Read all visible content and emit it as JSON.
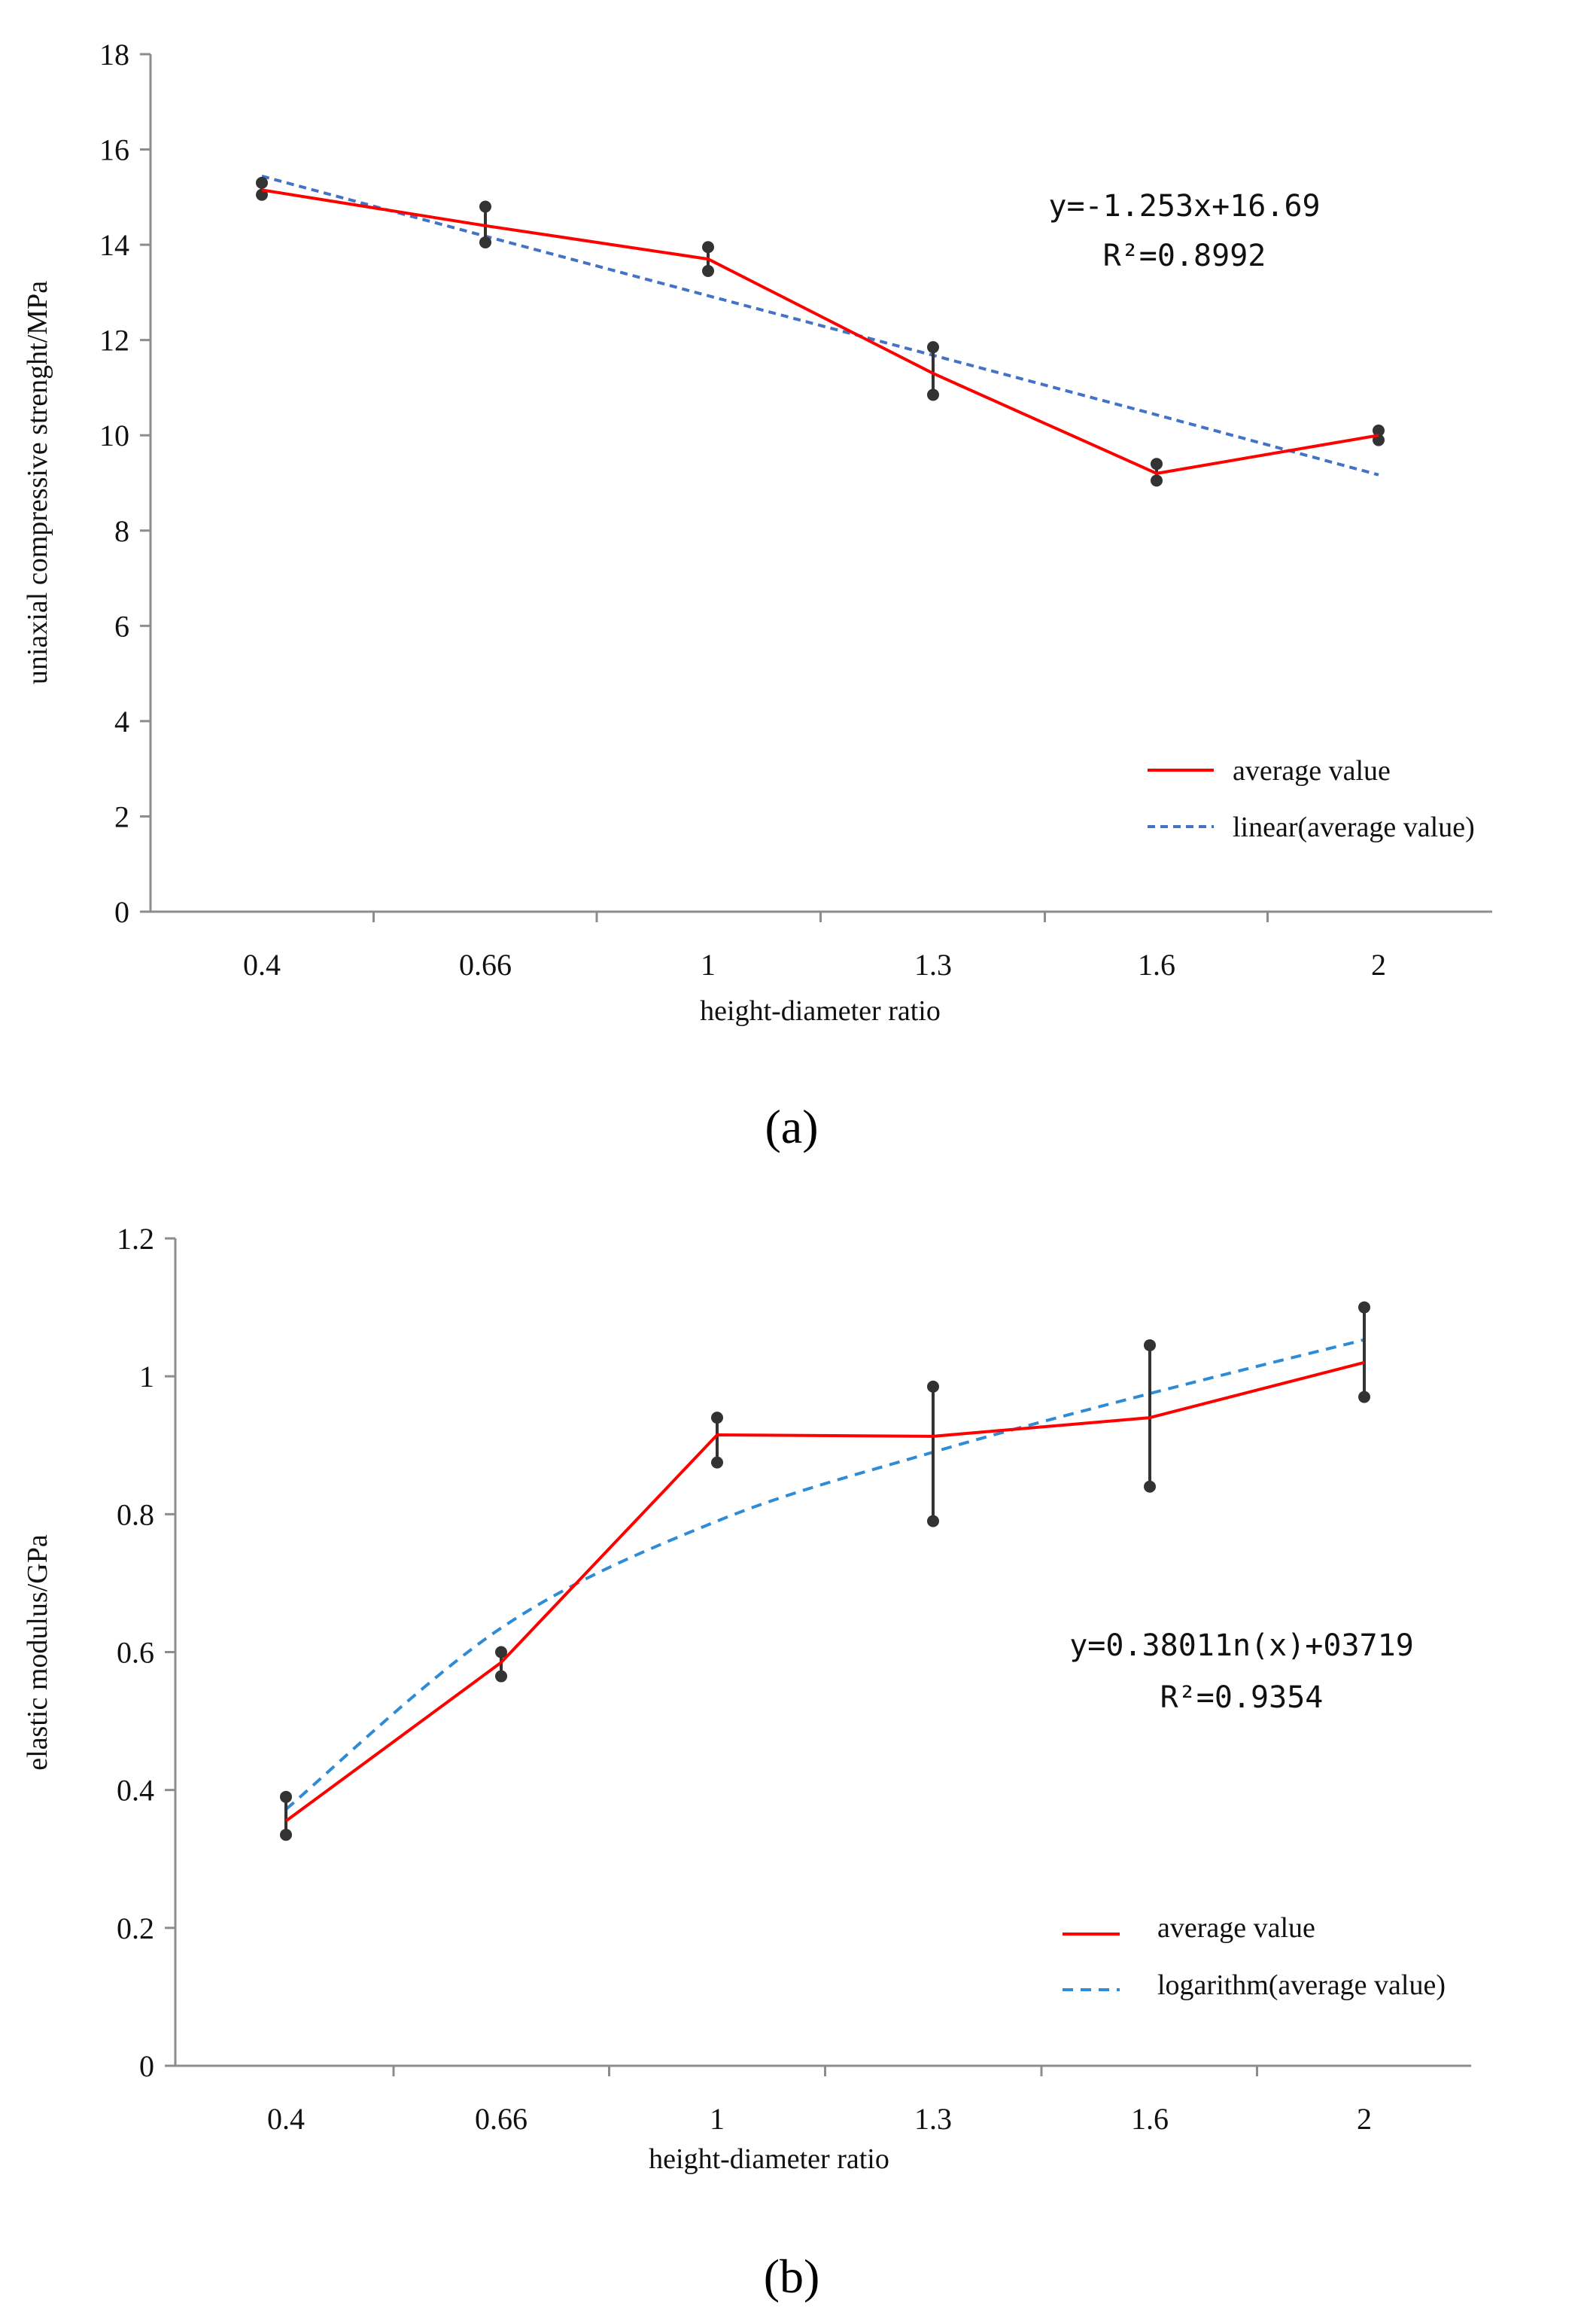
{
  "chart_data": [
    {
      "type": "line",
      "panel_label": "(a)",
      "categories": [
        "0.4",
        "0.66",
        "1",
        "1.3",
        "1.6",
        "2"
      ],
      "xlabel": "height-diameter ratio",
      "ylabel": "uniaxial compressive strenght/MPa",
      "ylim": [
        0,
        18
      ],
      "yticks": [
        "0",
        "2",
        "4",
        "6",
        "8",
        "10",
        "12",
        "14",
        "16",
        "18"
      ],
      "series": [
        {
          "name": "average value",
          "color": "#ff0000",
          "style": "solid",
          "values": [
            15.15,
            14.4,
            13.7,
            11.3,
            9.2,
            10.0
          ],
          "error_low": [
            15.05,
            14.05,
            13.45,
            10.85,
            9.05,
            9.9
          ],
          "error_high": [
            15.3,
            14.8,
            13.95,
            11.85,
            9.4,
            10.1
          ]
        },
        {
          "name": "linear(average value)",
          "color": "#4472c4",
          "style": "dashed",
          "values": [
            15.44,
            14.18,
            12.93,
            11.68,
            10.43,
            9.17
          ]
        }
      ],
      "equation": "y=-1.253x+16.69",
      "r2": "R²=0.8992",
      "legend_position": "bottom-right"
    },
    {
      "type": "line",
      "panel_label": "(b)",
      "categories": [
        "0.4",
        "0.66",
        "1",
        "1.3",
        "1.6",
        "2"
      ],
      "xlabel": "height-diameter ratio",
      "ylabel": "elastic modulus/GPa",
      "ylim": [
        0,
        1.2
      ],
      "yticks": [
        "0",
        "0.2",
        "0.4",
        "0.6",
        "0.8",
        "1",
        "1.2"
      ],
      "series": [
        {
          "name": "average value",
          "color": "#ff0000",
          "style": "solid",
          "values": [
            0.355,
            0.585,
            0.915,
            0.913,
            0.94,
            1.02
          ],
          "error_low": [
            0.335,
            0.565,
            0.875,
            0.79,
            0.84,
            0.97
          ],
          "error_high": [
            0.39,
            0.6,
            0.94,
            0.985,
            1.045,
            1.1
          ]
        },
        {
          "name": "logarithm(average value)",
          "color": "#2e8bd6",
          "style": "dashed",
          "values": [
            0.372,
            0.635,
            0.79,
            0.89,
            0.975,
            1.053
          ]
        }
      ],
      "equation": "y=0.38011n(x)+03719",
      "r2": "R²=0.9354",
      "legend_position": "bottom-right"
    }
  ]
}
